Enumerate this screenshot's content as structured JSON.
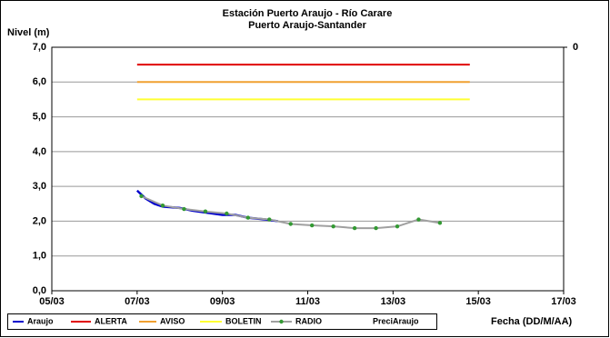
{
  "chart_data": {
    "type": "line",
    "title": "Estación Puerto Araujo - Río Carare",
    "subtitle": "Puerto Araujo-Santander",
    "ylabel": "Nivel (m)",
    "xlabel": "Fecha (DD/M/AA)",
    "xlim": [
      5,
      17
    ],
    "xticks": [
      {
        "value": 5,
        "label": "05/03"
      },
      {
        "value": 7,
        "label": "07/03"
      },
      {
        "value": 9,
        "label": "09/03"
      },
      {
        "value": 11,
        "label": "11/03"
      },
      {
        "value": 13,
        "label": "13/03"
      },
      {
        "value": 15,
        "label": "15/03"
      },
      {
        "value": 17,
        "label": "17/03"
      }
    ],
    "ylim": [
      0,
      7
    ],
    "yticks": [
      {
        "value": 0,
        "label": "0,0"
      },
      {
        "value": 1,
        "label": "1,0"
      },
      {
        "value": 2,
        "label": "2,0"
      },
      {
        "value": 3,
        "label": "3,0"
      },
      {
        "value": 4,
        "label": "4,0"
      },
      {
        "value": 5,
        "label": "5,0"
      },
      {
        "value": 6,
        "label": "6,0"
      },
      {
        "value": 7,
        "label": "7,0"
      }
    ],
    "y2lim": [
      0,
      1
    ],
    "y2_reversed": true,
    "y2ticks": [
      0
    ],
    "grid": true,
    "legend": "bottom",
    "series": [
      {
        "name": "Araujo",
        "color": "#0000cc",
        "x": [
          7.0,
          7.2,
          7.4,
          7.6,
          7.8,
          8.0,
          8.3,
          8.6,
          9.0,
          9.3,
          9.6,
          10.0,
          10.3
        ],
        "values": [
          2.88,
          2.65,
          2.5,
          2.42,
          2.4,
          2.38,
          2.3,
          2.25,
          2.18,
          2.18,
          2.1,
          2.05,
          2.0
        ]
      },
      {
        "name": "ALERTA",
        "color": "#e00000",
        "x": [
          7.0,
          14.8
        ],
        "values": [
          6.5,
          6.5
        ]
      },
      {
        "name": "AVISO",
        "color": "#f0a030",
        "x": [
          7.0,
          14.8
        ],
        "values": [
          6.0,
          6.0
        ]
      },
      {
        "name": "BOLETIN",
        "color": "#ffff33",
        "x": [
          7.0,
          14.8
        ],
        "values": [
          5.5,
          5.5
        ]
      },
      {
        "name": "RADIO",
        "color": "#a0a0a0",
        "marker_color": "#339933",
        "x": [
          7.1,
          7.6,
          8.1,
          8.6,
          9.1,
          9.6,
          10.1,
          10.6,
          11.1,
          11.6,
          12.1,
          12.6,
          13.1,
          13.6,
          14.1
        ],
        "values": [
          2.72,
          2.45,
          2.35,
          2.28,
          2.22,
          2.1,
          2.05,
          1.92,
          1.88,
          1.85,
          1.8,
          1.8,
          1.85,
          2.05,
          1.95
        ]
      },
      {
        "name": "PreciAraujo",
        "color": "#000000",
        "x": [],
        "values": [],
        "axis": "y2"
      }
    ]
  }
}
